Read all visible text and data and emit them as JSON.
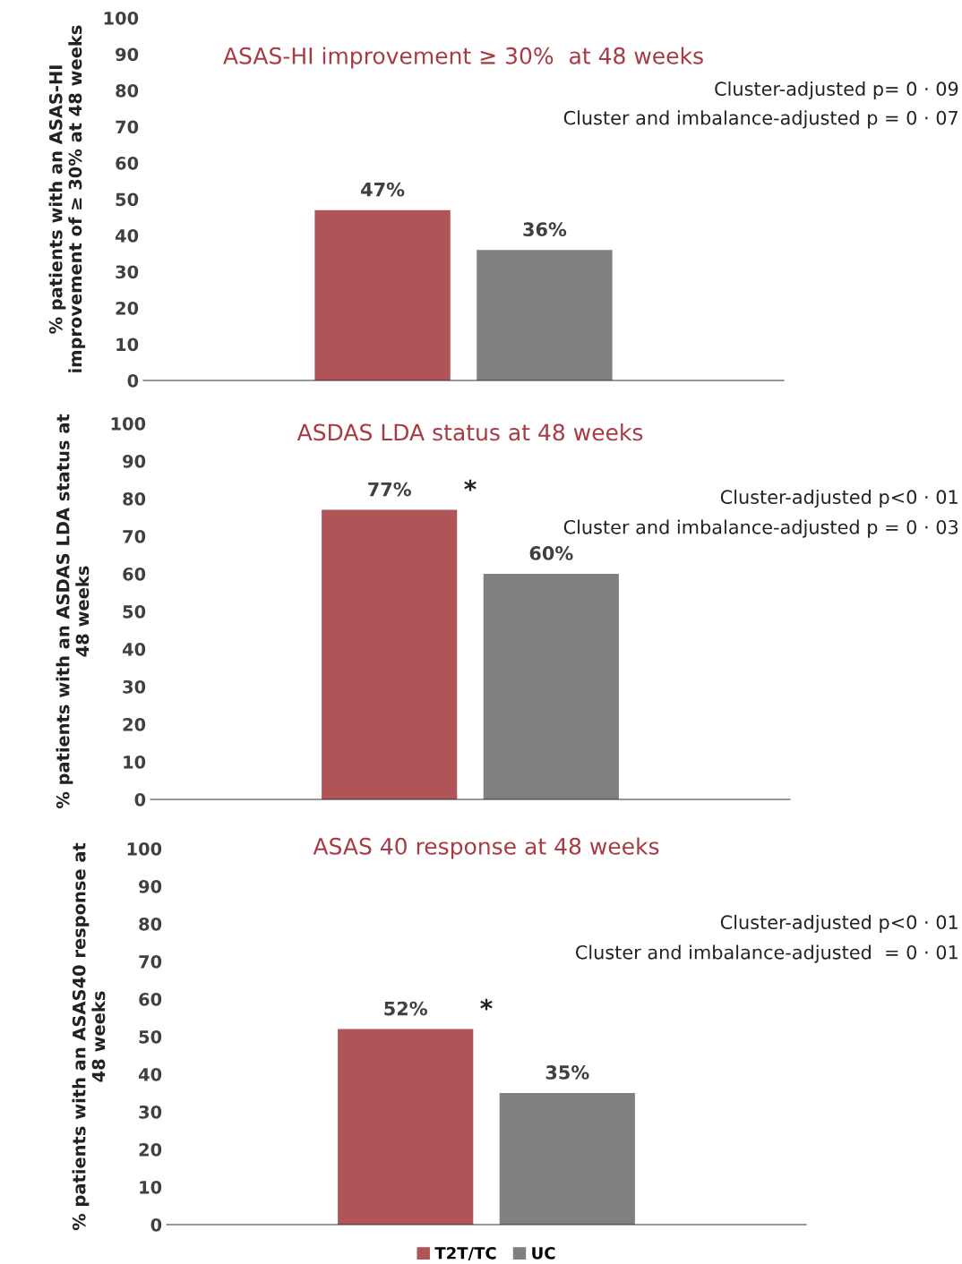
{
  "chart_data": [
    {
      "type": "bar",
      "title": "ASAS-HI improvement ≥ 30%  at 48 weeks",
      "ylabel": "% patients with an ASAS-HI\nimprovement of ≥ 30% at 48 weeks",
      "categories": [
        null
      ],
      "ylim": [
        0,
        100
      ],
      "yticks": [
        0,
        10,
        20,
        30,
        40,
        50,
        60,
        70,
        80,
        90,
        100
      ],
      "grid": false,
      "legend": false,
      "tick_labels": "y",
      "series": [
        {
          "color": "#b05458",
          "values": [
            47
          ],
          "value_labels": [
            "47%"
          ]
        },
        {
          "color": "#808080",
          "values": [
            36
          ],
          "value_labels": [
            "36%"
          ]
        }
      ],
      "annotations": [
        "Cluster-adjusted p= 0 · 09",
        "Cluster and imbalance-adjusted p = 0 · 07"
      ]
    },
    {
      "type": "bar",
      "title": "ASDAS LDA status at 48 weeks",
      "ylabel": "% patients with an ASDAS LDA status at\n48 weeks",
      "categories": [
        null
      ],
      "ylim": [
        0,
        100
      ],
      "yticks": [
        0,
        10,
        20,
        30,
        40,
        50,
        60,
        70,
        80,
        90,
        100
      ],
      "grid": false,
      "legend": false,
      "tick_labels": "y",
      "series": [
        {
          "color": "#b05458",
          "values": [
            77
          ],
          "value_labels": [
            "77%"
          ]
        },
        {
          "color": "#808080",
          "values": [
            60
          ],
          "value_labels": [
            "60%"
          ]
        }
      ],
      "annotations": [
        "*",
        "Cluster-adjusted p<0 · 01",
        "Cluster and imbalance-adjusted p = 0 · 03"
      ]
    },
    {
      "type": "bar",
      "title": "ASAS 40 response at 48 weeks",
      "ylabel": "% patients with an ASAS40 response at\n48 weeks",
      "categories": [
        null
      ],
      "ylim": [
        0,
        100
      ],
      "yticks": [
        0,
        10,
        20,
        30,
        40,
        50,
        60,
        70,
        80,
        90,
        100
      ],
      "grid": false,
      "legend": "bottom",
      "tick_labels": "y",
      "series": [
        {
          "name": "T2T/TC",
          "color": "#b05458",
          "values": [
            52
          ],
          "value_labels": [
            "52%"
          ]
        },
        {
          "name": "UC",
          "color": "#808080",
          "values": [
            35
          ],
          "value_labels": [
            "35%"
          ]
        }
      ],
      "annotations": [
        "*",
        "Cluster-adjusted p<0 · 01",
        "Cluster and imbalance-adjusted  = 0 · 01"
      ]
    }
  ]
}
